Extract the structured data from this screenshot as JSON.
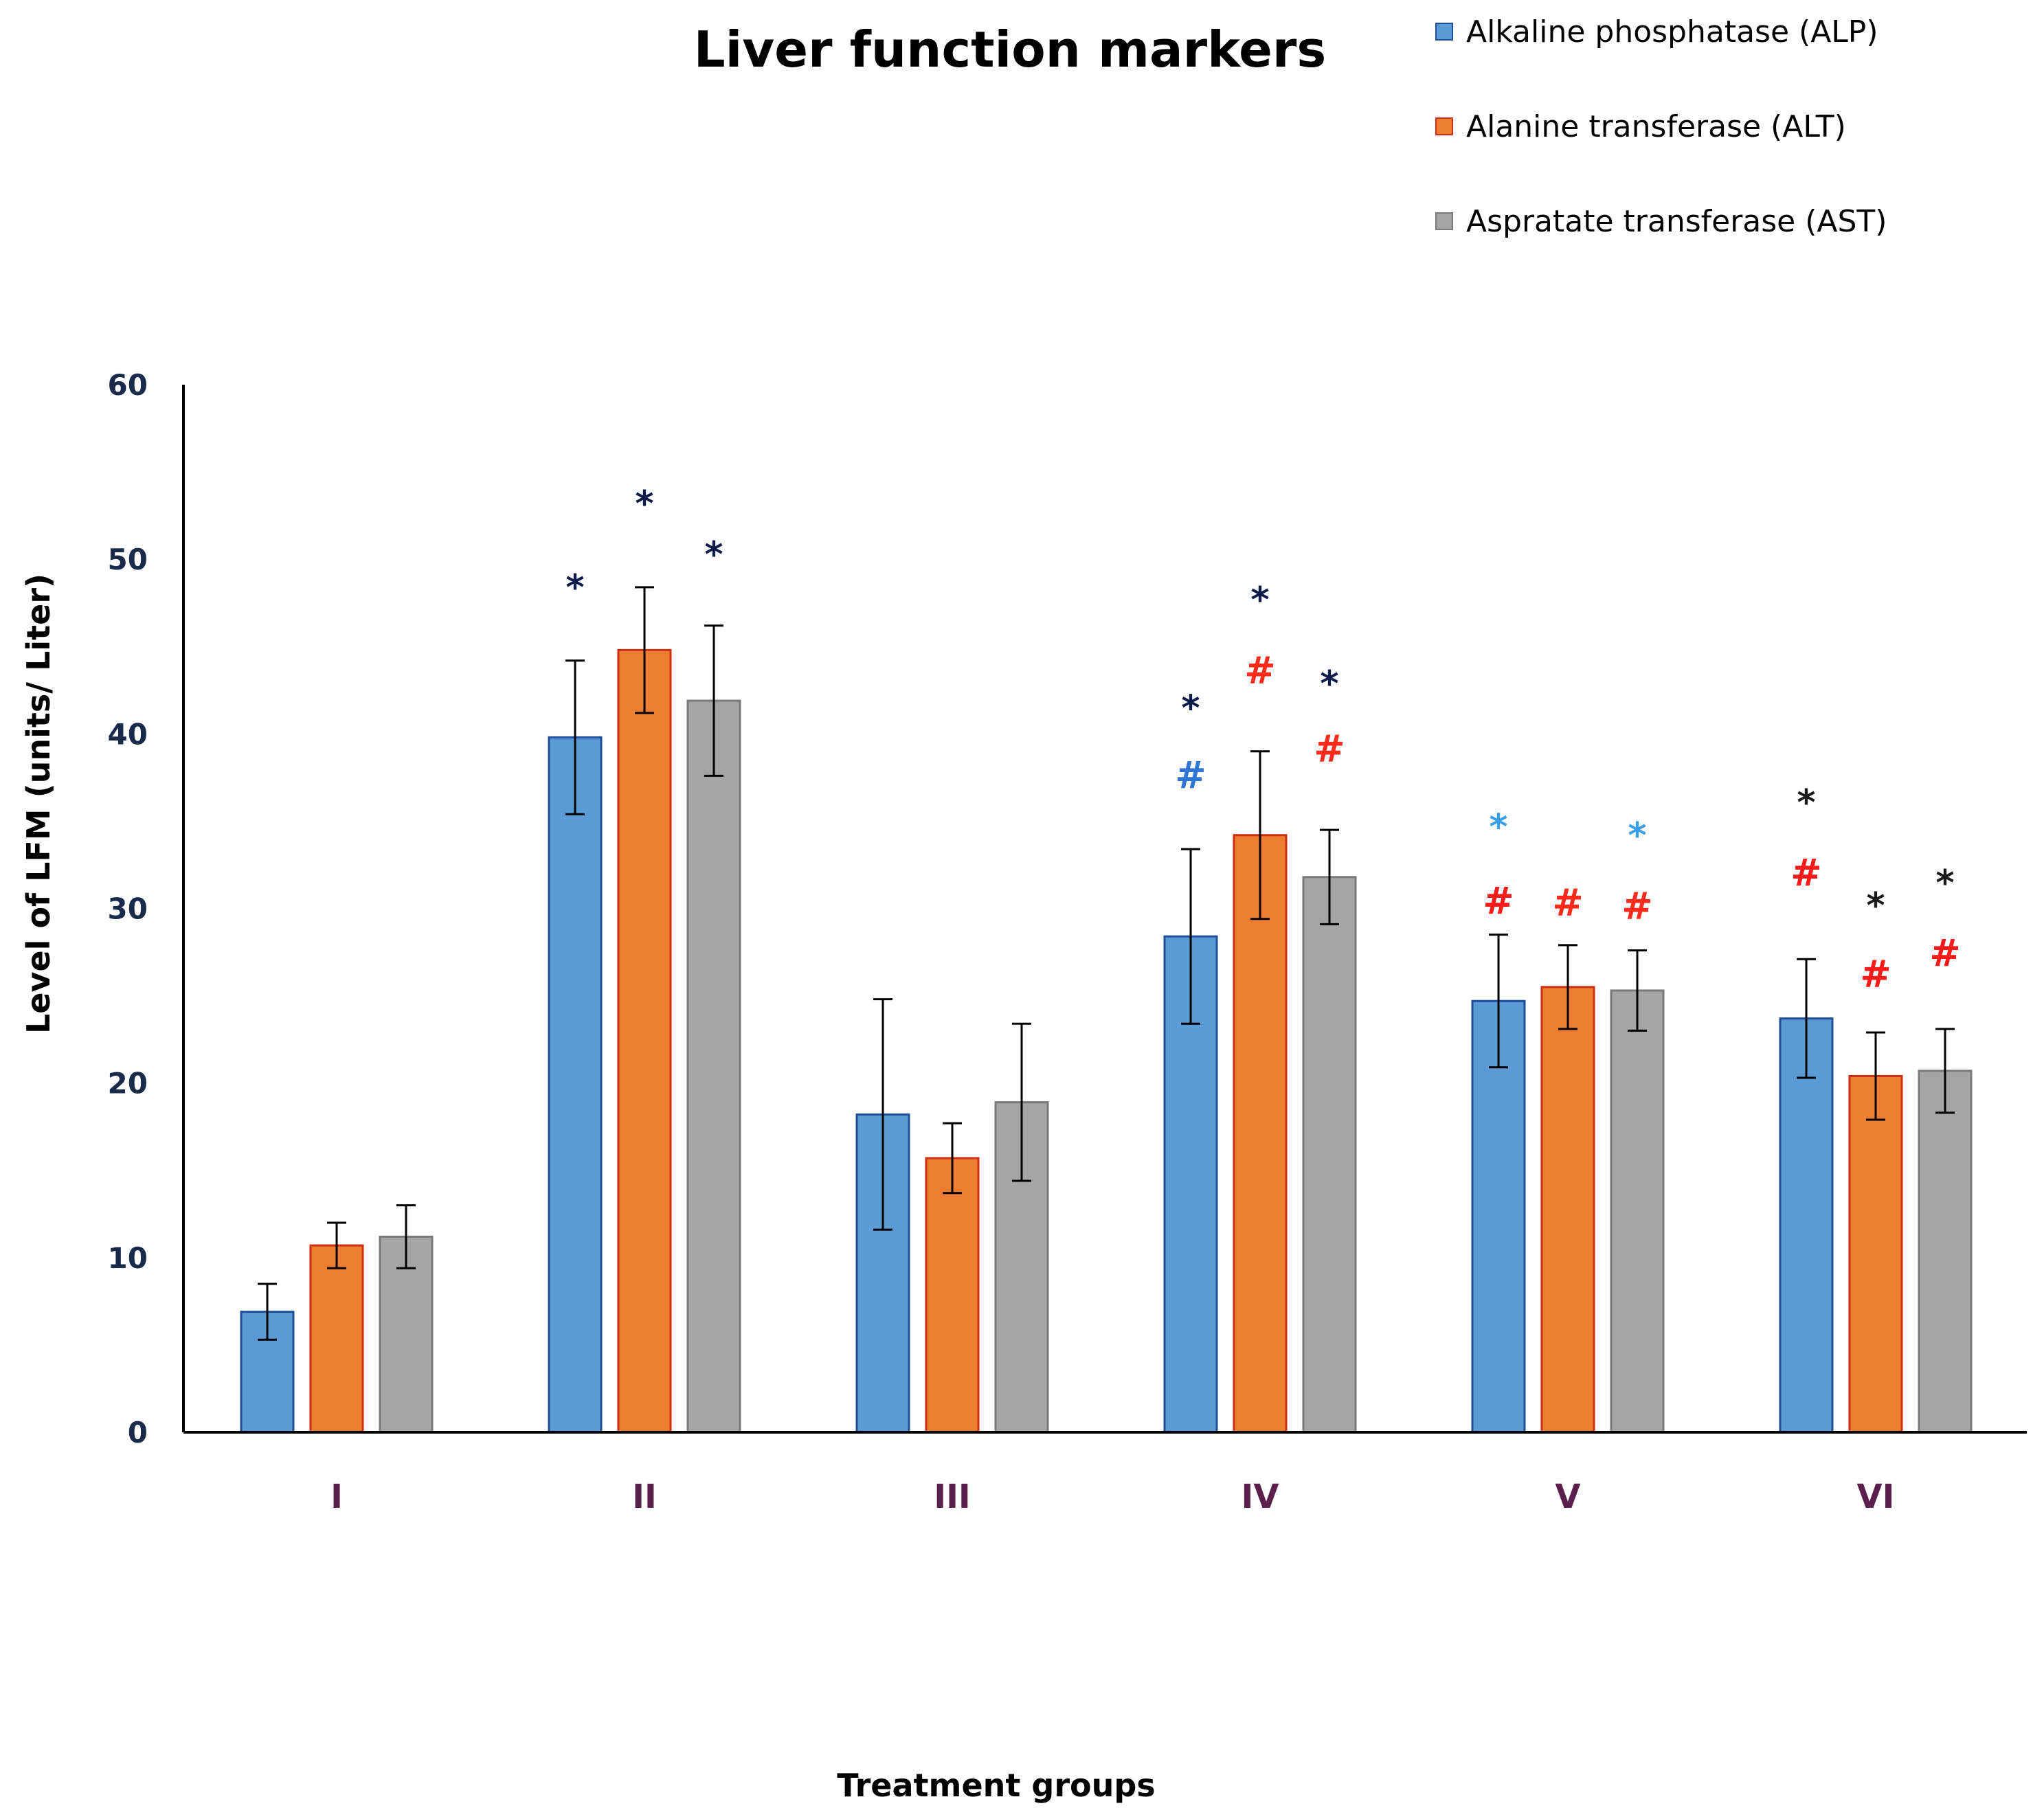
{
  "chart_data": {
    "type": "bar",
    "title": "Liver function markers",
    "xlabel": "Treatment groups",
    "ylabel": "Level of LFM (units/ Liter)",
    "ylim": [
      0,
      60
    ],
    "yticks": [
      0,
      10,
      20,
      30,
      40,
      50,
      60
    ],
    "legend_position": "top-right",
    "categories": [
      "I",
      "II",
      "III",
      "IV",
      "V",
      "VI"
    ],
    "series": [
      {
        "name": "Alkaline phosphatase (ALP)",
        "color": "#5b9bd5",
        "edge": "#1f4e9c",
        "values": [
          6.9,
          39.8,
          18.2,
          28.4,
          24.7,
          23.7
        ],
        "errors": [
          1.6,
          4.4,
          6.6,
          5.0,
          3.8,
          3.4
        ]
      },
      {
        "name": "Alanine transferase (ALT)",
        "color": "#ed7d31",
        "edge": "#d02e12",
        "values": [
          10.7,
          44.8,
          15.7,
          34.2,
          25.5,
          20.4
        ],
        "errors": [
          1.3,
          3.6,
          2.0,
          4.8,
          2.4,
          2.5
        ]
      },
      {
        "name": "Aspratate transferase (AST)",
        "color": "#a5a5a5",
        "edge": "#7a7a7a",
        "values": [
          11.2,
          41.9,
          18.9,
          31.8,
          25.3,
          20.7
        ],
        "errors": [
          1.8,
          4.3,
          4.5,
          2.7,
          2.3,
          2.4
        ]
      }
    ],
    "annotations": [
      {
        "text": "*",
        "group": 1,
        "series": 0,
        "y": 48.7,
        "color": "#0d1b4a"
      },
      {
        "text": "*",
        "group": 1,
        "series": 1,
        "y": 53.5,
        "color": "#0d1b4a"
      },
      {
        "text": "*",
        "group": 1,
        "series": 2,
        "y": 50.6,
        "color": "#0d1b4a"
      },
      {
        "text": "*",
        "group": 3,
        "series": 0,
        "y": 41.8,
        "color": "#0d1b4a"
      },
      {
        "text": "#",
        "group": 3,
        "series": 0,
        "y": 37.7,
        "color": "#2e75d6"
      },
      {
        "text": "*",
        "group": 3,
        "series": 1,
        "y": 48.0,
        "color": "#0d1b4a"
      },
      {
        "text": "#",
        "group": 3,
        "series": 1,
        "y": 43.7,
        "color": "#ff2a1a"
      },
      {
        "text": "*",
        "group": 3,
        "series": 2,
        "y": 43.2,
        "color": "#0d1b4a"
      },
      {
        "text": "#",
        "group": 3,
        "series": 2,
        "y": 39.2,
        "color": "#ff2a1a"
      },
      {
        "text": "*",
        "group": 4,
        "series": 0,
        "y": 35.0,
        "color": "#3a9ee8"
      },
      {
        "text": "#",
        "group": 4,
        "series": 0,
        "y": 30.5,
        "color": "#ff1a1a"
      },
      {
        "text": "#",
        "group": 4,
        "series": 1,
        "y": 30.4,
        "color": "#ff2a1a"
      },
      {
        "text": "*",
        "group": 4,
        "series": 2,
        "y": 34.5,
        "color": "#3a9ee8"
      },
      {
        "text": "#",
        "group": 4,
        "series": 2,
        "y": 30.2,
        "color": "#ff2a1a"
      },
      {
        "text": "*",
        "group": 5,
        "series": 0,
        "y": 36.4,
        "color": "#1a1a1a"
      },
      {
        "text": "#",
        "group": 5,
        "series": 0,
        "y": 32.1,
        "color": "#ff1a1a"
      },
      {
        "text": "*",
        "group": 5,
        "series": 1,
        "y": 30.5,
        "color": "#1a1a1a"
      },
      {
        "text": "#",
        "group": 5,
        "series": 1,
        "y": 26.3,
        "color": "#ff1a1a"
      },
      {
        "text": "*",
        "group": 5,
        "series": 2,
        "y": 31.8,
        "color": "#1a1a1a"
      },
      {
        "text": "#",
        "group": 5,
        "series": 2,
        "y": 27.5,
        "color": "#ff1a1a"
      }
    ]
  }
}
